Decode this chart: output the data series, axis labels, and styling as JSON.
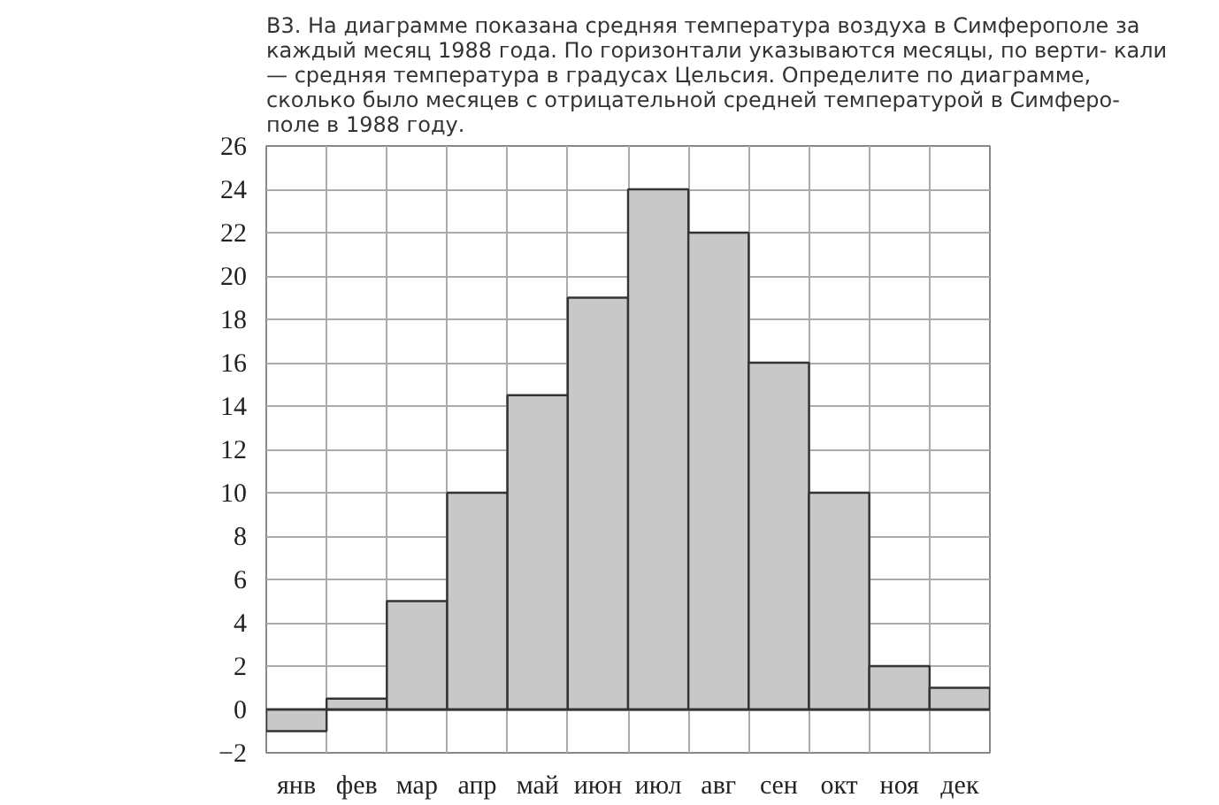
{
  "chart_data": {
    "type": "bar",
    "title": "В3. На диаграмме показана средняя температура воздуха в Симферополе за\nкаждый месяц 1988 года. По горизонтали указываются месяцы, по верти- кали\n— средняя температура в градусах Цельсия. Определите по диаграмме,\nсколько было месяцев с отрицательной средней температурой в Симферо-\nполе в 1988 году.",
    "categories": [
      "янв",
      "фев",
      "мар",
      "апр",
      "май",
      "июн",
      "июл",
      "авг",
      "сен",
      "окт",
      "ноя",
      "дек"
    ],
    "values": [
      -1,
      0.5,
      5,
      10,
      14.5,
      19,
      24,
      22,
      16,
      10,
      2,
      1
    ],
    "color": "#c8c8c8",
    "ylim": [
      -2,
      26
    ],
    "yticks": [
      -2,
      0,
      2,
      4,
      6,
      8,
      10,
      12,
      14,
      16,
      18,
      20,
      22,
      24,
      26
    ],
    "grid": true
  }
}
